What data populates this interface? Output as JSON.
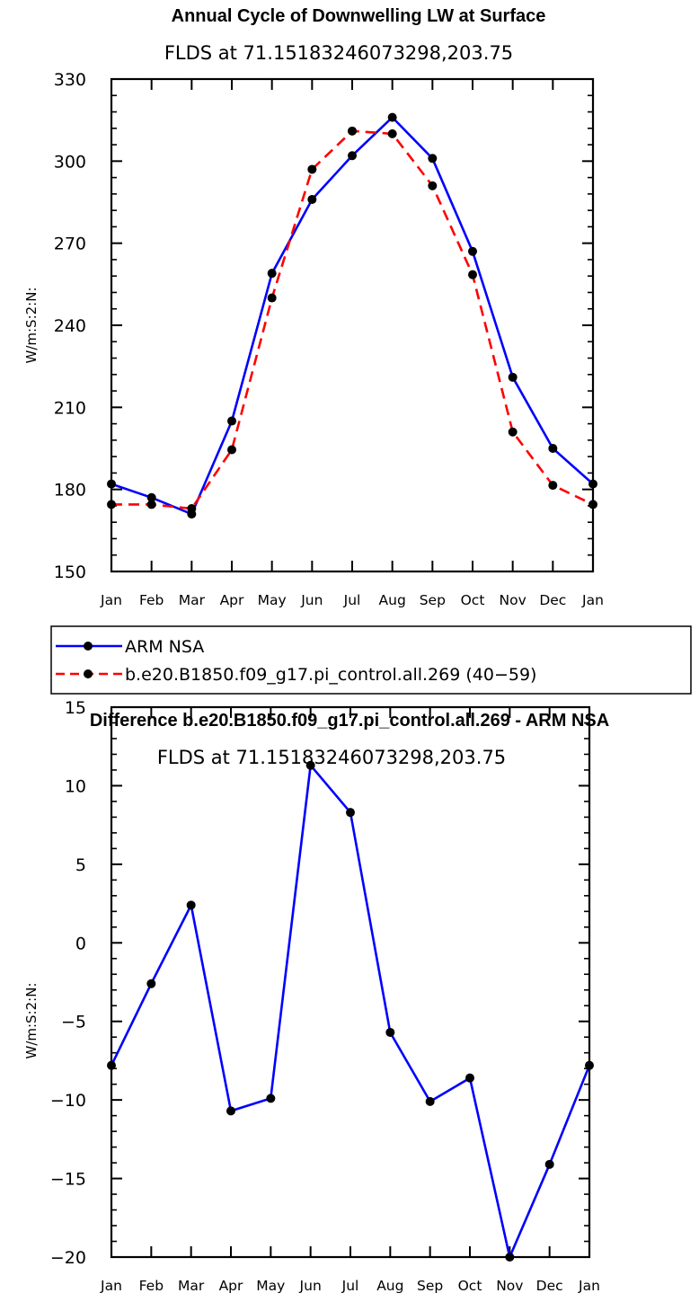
{
  "chart_data": [
    {
      "type": "line",
      "title": "Annual Cycle of Downwelling LW at Surface",
      "subtitle": "FLDS at 71.15183246073298,203.75",
      "xlabel": "",
      "ylabel": "W/m:S:2:N:",
      "categories": [
        "Jan",
        "Feb",
        "Mar",
        "Apr",
        "May",
        "Jun",
        "Jul",
        "Aug",
        "Sep",
        "Oct",
        "Nov",
        "Dec",
        "Jan"
      ],
      "ylim": [
        150,
        330
      ],
      "yticks": [
        150,
        180,
        210,
        240,
        270,
        300,
        330
      ],
      "series": [
        {
          "name": "ARM NSA",
          "color": "#0000ff",
          "dash": "solid",
          "values": [
            182,
            177,
            171,
            205,
            259,
            286,
            302,
            316,
            301,
            267,
            221,
            195,
            182
          ]
        },
        {
          "name": "b.e20.B1850.f09_g17.pi_control.all.269 (40−59)",
          "color": "#ff0000",
          "dash": "dashed",
          "values": [
            174.5,
            174.5,
            173,
            194.5,
            250,
            297,
            311,
            310,
            291,
            258.5,
            201,
            181.5,
            174.5
          ]
        }
      ],
      "legend": "below"
    },
    {
      "type": "line",
      "title": "Difference b.e20.B1850.f09_g17.pi_control.all.269 - ARM NSA",
      "subtitle": "FLDS at 71.15183246073298,203.75",
      "xlabel": "",
      "ylabel": "W/m:S:2:N:",
      "categories": [
        "Jan",
        "Feb",
        "Mar",
        "Apr",
        "May",
        "Jun",
        "Jul",
        "Aug",
        "Sep",
        "Oct",
        "Nov",
        "Dec",
        "Jan"
      ],
      "ylim": [
        -20,
        15
      ],
      "yticks": [
        -20,
        -15,
        -10,
        -5,
        0,
        5,
        10,
        15
      ],
      "ytick_labels": [
        "−20",
        "−15",
        "−10",
        "−5",
        "0",
        "5",
        "10",
        "15"
      ],
      "series": [
        {
          "name": "Difference",
          "color": "#0000ff",
          "dash": "solid",
          "values": [
            -7.8,
            -2.6,
            2.4,
            -10.7,
            -9.9,
            11.3,
            8.3,
            -5.7,
            -10.1,
            -8.6,
            -20,
            -14.1,
            -7.8
          ]
        }
      ]
    }
  ]
}
